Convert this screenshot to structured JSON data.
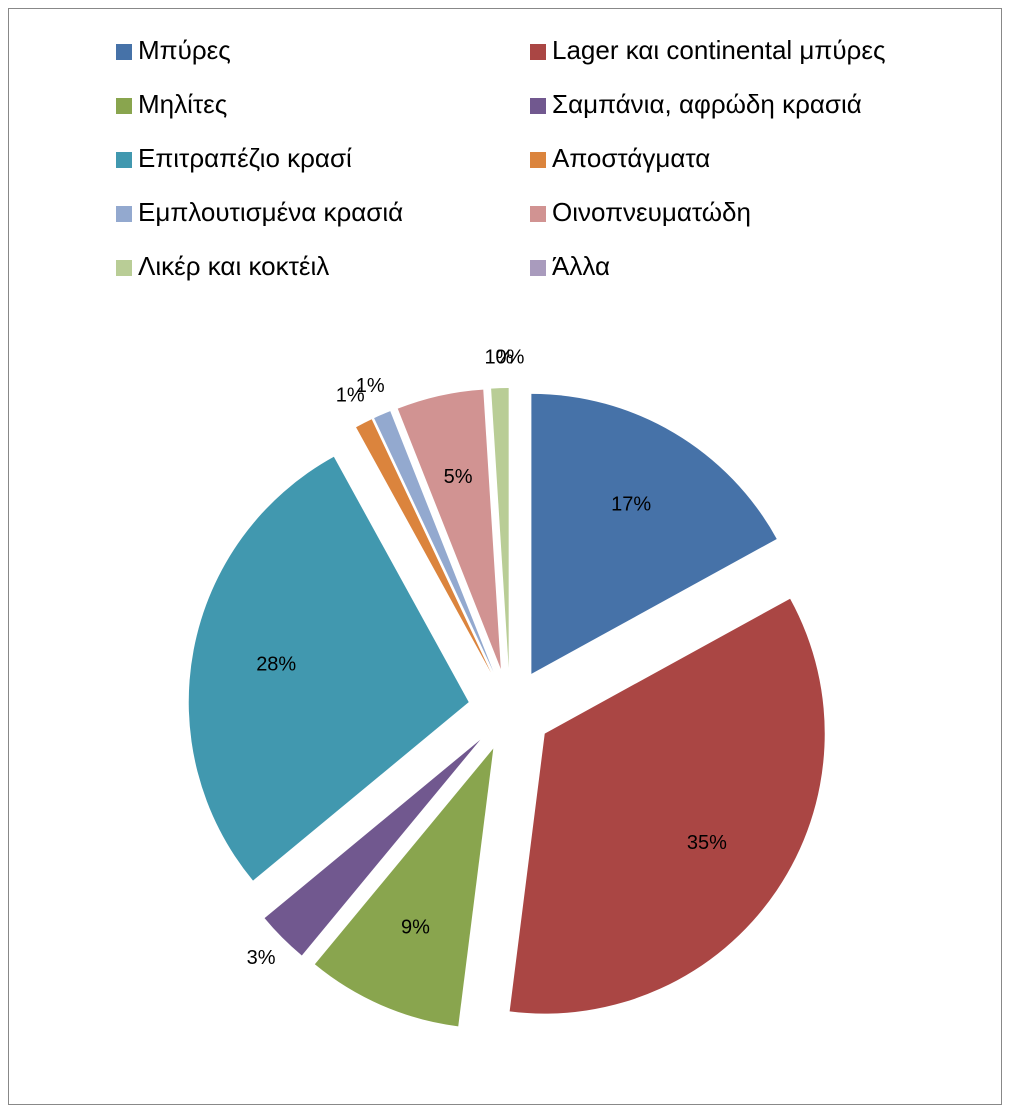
{
  "chart_data": {
    "type": "pie",
    "categories": [
      "Μπύρες",
      "Lager και continental μπύρες",
      "Μηλίτες",
      "Σαμπάνια, αφρώδη κρασιά",
      "Επιτραπέζιο κρασί",
      "Αποστάγματα",
      "Εμπλουτισμένα κρασιά",
      "Οινοπνευματώδη",
      "Λικέρ και κοκτέιλ",
      "Άλλα"
    ],
    "values": [
      17,
      35,
      9,
      3,
      28,
      1,
      1,
      5,
      1,
      0
    ],
    "value_labels": [
      "17%",
      "35%",
      "9%",
      "3%",
      "28%",
      "1%",
      "1%",
      "5%",
      "1%",
      "0%"
    ],
    "colors": [
      "#4672a8",
      "#aa4644",
      "#89a54e",
      "#71588f",
      "#4198af",
      "#db843d",
      "#93a9cf",
      "#d19392",
      "#b9cd96",
      "#a99bbd"
    ],
    "exploded": true,
    "legend": "top"
  }
}
